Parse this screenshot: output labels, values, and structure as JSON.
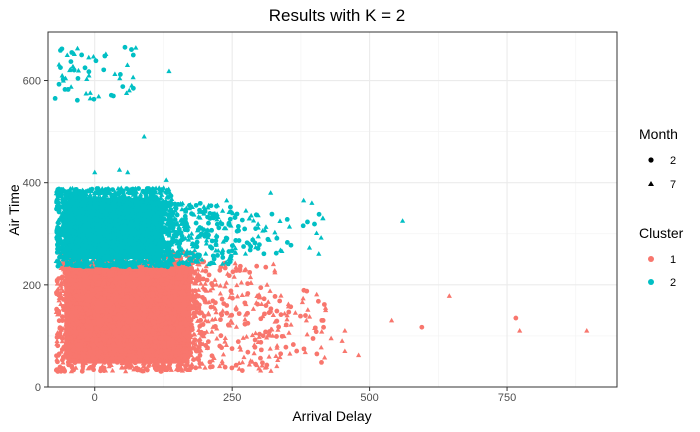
{
  "chart_data": {
    "type": "scatter",
    "title": "Results with K = 2",
    "xlabel": "Arrival Delay",
    "ylabel": "Air Time",
    "xlim": [
      -85,
      950
    ],
    "ylim": [
      0,
      695
    ],
    "x_ticks": [
      0,
      250,
      500,
      750
    ],
    "y_ticks": [
      0,
      200,
      400,
      600
    ],
    "x_tick_labels": [
      "0",
      "250",
      "500",
      "750"
    ],
    "y_tick_labels": [
      "0",
      "200",
      "400",
      "600"
    ],
    "grid": true,
    "legend_placement": "right",
    "shape_legend": {
      "title": "Month",
      "entries": [
        {
          "label": "2",
          "shape": "circle"
        },
        {
          "label": "7",
          "shape": "triangle"
        }
      ]
    },
    "color_legend": {
      "title": "Cluster",
      "entries": [
        {
          "label": "1",
          "color": "#F8766D"
        },
        {
          "label": "2",
          "color": "#00BFC4"
        }
      ]
    },
    "series": [
      {
        "name": "1",
        "color": "#F8766D",
        "clouds": [
          {
            "x": [
              -70,
              190
            ],
            "y": [
              30,
              265
            ],
            "density": "dense"
          },
          {
            "x": [
              190,
              330
            ],
            "y": [
              30,
              250
            ],
            "density": "medium"
          },
          {
            "x": [
              330,
              420
            ],
            "y": [
              40,
              190
            ],
            "density": "sparse"
          }
        ],
        "points": [
          {
            "x": 350,
            "y": 140,
            "month": "7"
          },
          {
            "x": 365,
            "y": 145,
            "month": "7"
          },
          {
            "x": 385,
            "y": 130,
            "month": "7"
          },
          {
            "x": 450,
            "y": 90,
            "month": "7"
          },
          {
            "x": 455,
            "y": 110,
            "month": "7"
          },
          {
            "x": 480,
            "y": 62,
            "month": "7"
          },
          {
            "x": 455,
            "y": 70,
            "month": "7"
          },
          {
            "x": 540,
            "y": 130,
            "month": "7"
          },
          {
            "x": 595,
            "y": 117,
            "month": "2"
          },
          {
            "x": 645,
            "y": 178,
            "month": "7"
          },
          {
            "x": 766,
            "y": 135,
            "month": "2"
          },
          {
            "x": 773,
            "y": 110,
            "month": "7"
          },
          {
            "x": 895,
            "y": 110,
            "month": "7"
          },
          {
            "x": 400,
            "y": 115,
            "month": "7"
          },
          {
            "x": 420,
            "y": 150,
            "month": "7"
          },
          {
            "x": 430,
            "y": 95,
            "month": "7"
          },
          {
            "x": 355,
            "y": 65,
            "month": "7"
          }
        ]
      },
      {
        "name": "2",
        "color": "#00BFC4",
        "clouds": [
          {
            "x": [
              -70,
              140
            ],
            "y": [
              235,
              390
            ],
            "density": "dense"
          },
          {
            "x": [
              140,
              260
            ],
            "y": [
              240,
              360
            ],
            "density": "medium"
          },
          {
            "x": [
              260,
              420
            ],
            "y": [
              260,
              340
            ],
            "density": "sparse"
          },
          {
            "x": [
              -65,
              75
            ],
            "y": [
              560,
              665
            ],
            "density": "sparse"
          }
        ],
        "points": [
          {
            "x": 560,
            "y": 325,
            "month": "7"
          },
          {
            "x": 415,
            "y": 330,
            "month": "7"
          },
          {
            "x": 135,
            "y": 618,
            "month": "7"
          },
          {
            "x": 90,
            "y": 490,
            "month": "7"
          },
          {
            "x": 55,
            "y": 665,
            "month": "2"
          },
          {
            "x": -72,
            "y": 565,
            "month": "2"
          },
          {
            "x": 45,
            "y": 425,
            "month": "7"
          },
          {
            "x": 130,
            "y": 405,
            "month": "7"
          },
          {
            "x": 60,
            "y": 420,
            "month": "7"
          },
          {
            "x": 0,
            "y": 420,
            "month": "7"
          },
          {
            "x": 320,
            "y": 380,
            "month": "7"
          },
          {
            "x": 380,
            "y": 365,
            "month": "7"
          },
          {
            "x": 395,
            "y": 360,
            "month": "7"
          },
          {
            "x": 275,
            "y": 345,
            "month": "7"
          },
          {
            "x": 240,
            "y": 365,
            "month": "7"
          }
        ]
      }
    ]
  }
}
